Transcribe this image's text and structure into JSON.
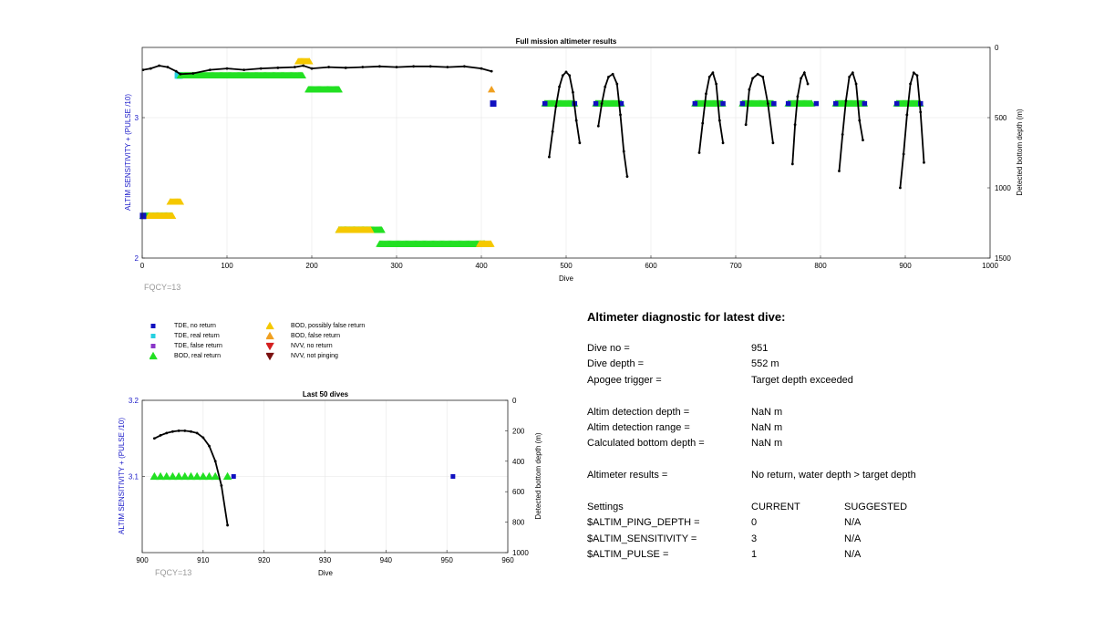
{
  "colors": {
    "tde_no": "#1010c0",
    "tde_real": "#26d0e0",
    "tde_false": "#8a36c8",
    "bod_real": "#22e022",
    "bod_possible": "#f5c800",
    "bod_false": "#f0a020",
    "nvv_no": "#d42020",
    "nvv_notping": "#7a1010",
    "axis_left": "#1a1ac8"
  },
  "main_chart": {
    "title": "Full mission altimeter results",
    "xlabel": "Dive",
    "ylabel_left": "ALTIM SENSITIVITY + (PULSE /10)",
    "ylabel_right": "Detected bottom depth (m)",
    "footnote": "FQCY=13"
  },
  "detail_chart": {
    "title": "Last 50 dives",
    "xlabel": "Dive",
    "ylabel_left": "ALTIM SENSITIVITY + (PULSE /10)",
    "ylabel_right": "Detected bottom depth (m)",
    "footnote": "FQCY=13"
  },
  "legend": [
    {
      "symbol": "square",
      "color_key": "tde_no",
      "label": "TDE, no return"
    },
    {
      "symbol": "square",
      "color_key": "tde_real",
      "label": "TDE, real return"
    },
    {
      "symbol": "square",
      "color_key": "tde_false",
      "label": "TDE, false return"
    },
    {
      "symbol": "triangle-up",
      "color_key": "bod_real",
      "label": "BOD, real return"
    },
    {
      "symbol": "triangle-up",
      "color_key": "bod_possible",
      "label": "BOD, possibly false return"
    },
    {
      "symbol": "triangle-up",
      "color_key": "bod_false",
      "label": "BOD, false return"
    },
    {
      "symbol": "triangle-down",
      "color_key": "nvv_no",
      "label": "NVV, no return"
    },
    {
      "symbol": "triangle-down",
      "color_key": "nvv_notping",
      "label": "NVV, not pinging"
    }
  ],
  "diagnostic": {
    "title": "Altimeter diagnostic for latest dive:",
    "dive_no_label": "Dive no =",
    "dive_no": "951",
    "dive_depth_label": "Dive depth =",
    "dive_depth": "552 m",
    "apogee_label": "Apogee trigger =",
    "apogee": "Target depth exceeded",
    "altim_depth_label": "Altim detection depth =",
    "altim_depth": "NaN m",
    "altim_range_label": "Altim detection range =",
    "altim_range": "NaN m",
    "calc_bottom_label": "Calculated bottom depth =",
    "calc_bottom": "NaN m",
    "results_label": "Altimeter results =",
    "results": "No return, water depth > target depth",
    "settings_header": "Settings",
    "current_header": "CURRENT",
    "suggested_header": "SUGGESTED",
    "settings": [
      {
        "name": "$ALTIM_PING_DEPTH =",
        "current": "0",
        "suggested": "N/A"
      },
      {
        "name": "$ALTIM_SENSITIVITY =",
        "current": "3",
        "suggested": "N/A"
      },
      {
        "name": "$ALTIM_PULSE =",
        "current": "1",
        "suggested": "N/A"
      }
    ]
  },
  "chart_data": [
    {
      "type": "scatter",
      "title": "Full mission altimeter results",
      "xlabel": "Dive",
      "ylabel": "ALTIM SENSITIVITY + (PULSE /10)",
      "y2label": "Detected bottom depth (m)",
      "xlim": [
        0,
        1000
      ],
      "ylim": [
        2,
        3.5
      ],
      "y2lim": [
        1500,
        0
      ],
      "xticks": [
        0,
        100,
        200,
        300,
        400,
        500,
        600,
        700,
        800,
        900,
        1000
      ],
      "yticks": [
        2,
        3
      ],
      "y2ticks": [
        0,
        500,
        1000,
        1500
      ],
      "grid": true,
      "marker_runs": [
        {
          "color_key": "bod_real",
          "marker": "triangle-up",
          "x_start": 1,
          "x_end": 35,
          "y": 2.3
        },
        {
          "color_key": "bod_possible",
          "marker": "triangle-up",
          "x_start": 8,
          "x_end": 36,
          "y": 2.3
        },
        {
          "color_key": "bod_possible",
          "marker": "triangle-up",
          "x_start": 33,
          "x_end": 45,
          "y": 2.4
        },
        {
          "color_key": "tde_no",
          "marker": "square",
          "x_start": 1,
          "x_end": 1,
          "y": 2.3
        },
        {
          "color_key": "tde_real",
          "marker": "square",
          "x_start": 42,
          "x_end": 45,
          "y": 3.3
        },
        {
          "color_key": "bod_real",
          "marker": "triangle-up",
          "x_start": 45,
          "x_end": 190,
          "y": 3.3
        },
        {
          "color_key": "bod_possible",
          "marker": "triangle-up",
          "x_start": 184,
          "x_end": 198,
          "y": 3.4
        },
        {
          "color_key": "bod_real",
          "marker": "triangle-up",
          "x_start": 196,
          "x_end": 233,
          "y": 3.2
        },
        {
          "color_key": "bod_real",
          "marker": "triangle-up",
          "x_start": 232,
          "x_end": 283,
          "y": 2.2
        },
        {
          "color_key": "bod_possible",
          "marker": "triangle-up",
          "x_start": 232,
          "x_end": 270,
          "y": 2.2
        },
        {
          "color_key": "bod_real",
          "marker": "triangle-up",
          "x_start": 280,
          "x_end": 404,
          "y": 2.1
        },
        {
          "color_key": "bod_possible",
          "marker": "triangle-up",
          "x_start": 398,
          "x_end": 412,
          "y": 2.1
        },
        {
          "color_key": "bod_false",
          "marker": "triangle-up",
          "x_start": 412,
          "x_end": 412,
          "y": 3.2
        },
        {
          "color_key": "tde_no",
          "marker": "square",
          "x_start": 414,
          "x_end": 414,
          "y": 3.1
        },
        {
          "color_key": "bod_real",
          "marker": "triangle-up",
          "x_start": 475,
          "x_end": 510,
          "y": 3.1
        },
        {
          "color_key": "bod_real",
          "marker": "triangle-up",
          "x_start": 535,
          "x_end": 565,
          "y": 3.1
        },
        {
          "color_key": "bod_real",
          "marker": "triangle-up",
          "x_start": 652,
          "x_end": 685,
          "y": 3.1
        },
        {
          "color_key": "bod_real",
          "marker": "triangle-up",
          "x_start": 708,
          "x_end": 745,
          "y": 3.1
        },
        {
          "color_key": "bod_real",
          "marker": "triangle-up",
          "x_start": 762,
          "x_end": 790,
          "y": 3.1
        },
        {
          "color_key": "bod_real",
          "marker": "triangle-up",
          "x_start": 818,
          "x_end": 852,
          "y": 3.1
        },
        {
          "color_key": "bod_real",
          "marker": "triangle-up",
          "x_start": 890,
          "x_end": 918,
          "y": 3.1
        },
        {
          "color_key": "tde_no",
          "marker": "square",
          "x_start": 475,
          "x_end": 510,
          "y": 3.1,
          "sparse": true
        },
        {
          "color_key": "tde_no",
          "marker": "square",
          "x_start": 535,
          "x_end": 565,
          "y": 3.1,
          "sparse": true
        },
        {
          "color_key": "tde_no",
          "marker": "square",
          "x_start": 652,
          "x_end": 685,
          "y": 3.1,
          "sparse": true
        },
        {
          "color_key": "tde_no",
          "marker": "square",
          "x_start": 708,
          "x_end": 745,
          "y": 3.1,
          "sparse": true
        },
        {
          "color_key": "tde_no",
          "marker": "square",
          "x_start": 762,
          "x_end": 795,
          "y": 3.1,
          "sparse": true
        },
        {
          "color_key": "tde_no",
          "marker": "square",
          "x_start": 818,
          "x_end": 852,
          "y": 3.1,
          "sparse": true
        },
        {
          "color_key": "tde_no",
          "marker": "square",
          "x_start": 890,
          "x_end": 918,
          "y": 3.1,
          "sparse": true
        }
      ],
      "bottom_depth_segments": [
        {
          "points": [
            [
              1,
              160
            ],
            [
              10,
              150
            ],
            [
              20,
              130
            ],
            [
              30,
              140
            ],
            [
              40,
              170
            ],
            [
              45,
              190
            ],
            [
              60,
              185
            ],
            [
              80,
              160
            ],
            [
              100,
              150
            ],
            [
              120,
              160
            ],
            [
              140,
              150
            ],
            [
              160,
              145
            ],
            [
              180,
              140
            ],
            [
              190,
              130
            ],
            [
              200,
              150
            ],
            [
              220,
              140
            ],
            [
              240,
              145
            ],
            [
              260,
              140
            ],
            [
              280,
              135
            ],
            [
              300,
              140
            ],
            [
              320,
              135
            ],
            [
              340,
              135
            ],
            [
              360,
              140
            ],
            [
              380,
              135
            ],
            [
              400,
              150
            ],
            [
              412,
              170
            ]
          ]
        },
        {
          "points": [
            [
              480,
              780
            ],
            [
              484,
              600
            ],
            [
              488,
              420
            ],
            [
              492,
              280
            ],
            [
              496,
              200
            ],
            [
              500,
              175
            ],
            [
              504,
              200
            ],
            [
              508,
              320
            ],
            [
              512,
              520
            ],
            [
              516,
              680
            ]
          ]
        },
        {
          "points": [
            [
              538,
              560
            ],
            [
              542,
              400
            ],
            [
              546,
              280
            ],
            [
              550,
              210
            ],
            [
              555,
              190
            ],
            [
              560,
              260
            ],
            [
              564,
              480
            ],
            [
              568,
              740
            ],
            [
              572,
              920
            ]
          ]
        },
        {
          "points": [
            [
              657,
              750
            ],
            [
              661,
              540
            ],
            [
              665,
              330
            ],
            [
              669,
              210
            ],
            [
              673,
              180
            ],
            [
              677,
              260
            ],
            [
              681,
              520
            ],
            [
              685,
              680
            ]
          ]
        },
        {
          "points": [
            [
              712,
              550
            ],
            [
              716,
              300
            ],
            [
              720,
              220
            ],
            [
              726,
              190
            ],
            [
              732,
              210
            ],
            [
              738,
              400
            ],
            [
              744,
              680
            ]
          ]
        },
        {
          "points": [
            [
              767,
              830
            ],
            [
              770,
              550
            ],
            [
              773,
              350
            ],
            [
              777,
              220
            ],
            [
              781,
              180
            ],
            [
              785,
              260
            ]
          ]
        },
        {
          "points": [
            [
              822,
              880
            ],
            [
              826,
              620
            ],
            [
              830,
              380
            ],
            [
              834,
              210
            ],
            [
              838,
              180
            ],
            [
              842,
              260
            ],
            [
              846,
              520
            ],
            [
              850,
              660
            ]
          ]
        },
        {
          "points": [
            [
              894,
              1000
            ],
            [
              898,
              760
            ],
            [
              902,
              480
            ],
            [
              906,
              260
            ],
            [
              910,
              180
            ],
            [
              914,
              200
            ],
            [
              918,
              460
            ],
            [
              922,
              820
            ]
          ]
        }
      ]
    },
    {
      "type": "scatter",
      "title": "Last 50 dives",
      "xlabel": "Dive",
      "ylabel": "ALTIM SENSITIVITY + (PULSE /10)",
      "y2label": "Detected bottom depth (m)",
      "xlim": [
        900,
        960
      ],
      "ylim": [
        3.0,
        3.2
      ],
      "y2lim": [
        1000,
        0
      ],
      "xticks": [
        900,
        910,
        920,
        930,
        940,
        950,
        960
      ],
      "yticks": [
        3.1,
        3.2
      ],
      "y2ticks": [
        0,
        200,
        400,
        600,
        800,
        1000
      ],
      "grid": true,
      "bod_real_points": [
        [
          902,
          3.1
        ],
        [
          903,
          3.1
        ],
        [
          904,
          3.1
        ],
        [
          905,
          3.1
        ],
        [
          906,
          3.1
        ],
        [
          907,
          3.1
        ],
        [
          908,
          3.1
        ],
        [
          909,
          3.1
        ],
        [
          910,
          3.1
        ],
        [
          911,
          3.1
        ],
        [
          912,
          3.1
        ],
        [
          914,
          3.1
        ]
      ],
      "tde_no_points": [
        [
          915,
          3.1
        ],
        [
          951,
          3.1
        ]
      ],
      "bottom_depth": [
        [
          902,
          250
        ],
        [
          903,
          230
        ],
        [
          904,
          215
        ],
        [
          905,
          205
        ],
        [
          906,
          200
        ],
        [
          907,
          200
        ],
        [
          908,
          205
        ],
        [
          909,
          215
        ],
        [
          910,
          245
        ],
        [
          911,
          300
        ],
        [
          912,
          400
        ],
        [
          913,
          560
        ],
        [
          914,
          820
        ]
      ]
    }
  ]
}
